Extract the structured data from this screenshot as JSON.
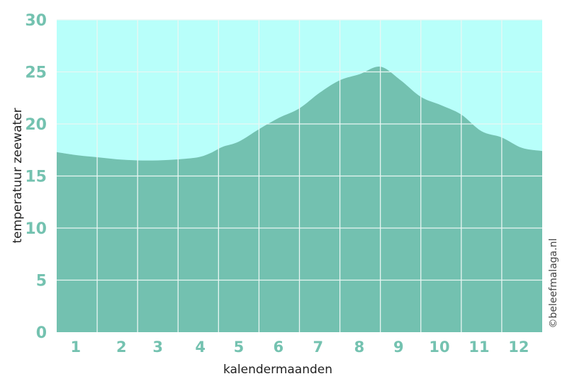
{
  "chart_data": {
    "type": "area",
    "title": "",
    "xlabel": "kalendermaanden",
    "ylabel": "temperatuur zeewater",
    "ylim": [
      0,
      30
    ],
    "yticks": [
      "0",
      "5",
      "10",
      "15",
      "20",
      "25",
      "30"
    ],
    "xlim": [
      0.5,
      12.5
    ],
    "month_labels": [
      "1",
      "2",
      "3",
      "4",
      "5",
      "6",
      "7",
      "8",
      "9",
      "10",
      "11",
      "12"
    ],
    "grid": true,
    "x": [
      0.5,
      1.0,
      1.5,
      2.0,
      2.5,
      3.0,
      3.5,
      4.0,
      4.3,
      4.6,
      5.0,
      5.5,
      6.0,
      6.5,
      7.0,
      7.5,
      8.0,
      8.5,
      9.0,
      9.5,
      10.0,
      10.5,
      11.0,
      11.5,
      12.0,
      12.5
    ],
    "y": [
      17.3,
      17.0,
      16.8,
      16.6,
      16.5,
      16.5,
      16.6,
      16.8,
      17.2,
      17.8,
      18.3,
      19.5,
      20.6,
      21.5,
      23.0,
      24.2,
      24.8,
      25.5,
      24.2,
      22.6,
      21.8,
      20.9,
      19.3,
      18.7,
      17.7,
      17.4
    ],
    "colors": {
      "background": "#b8fffa",
      "fill": "#73c1b0",
      "grid": "#e9f6f3",
      "tick": "#74c2b0"
    }
  },
  "credit": "©beleefmalaga.nl"
}
